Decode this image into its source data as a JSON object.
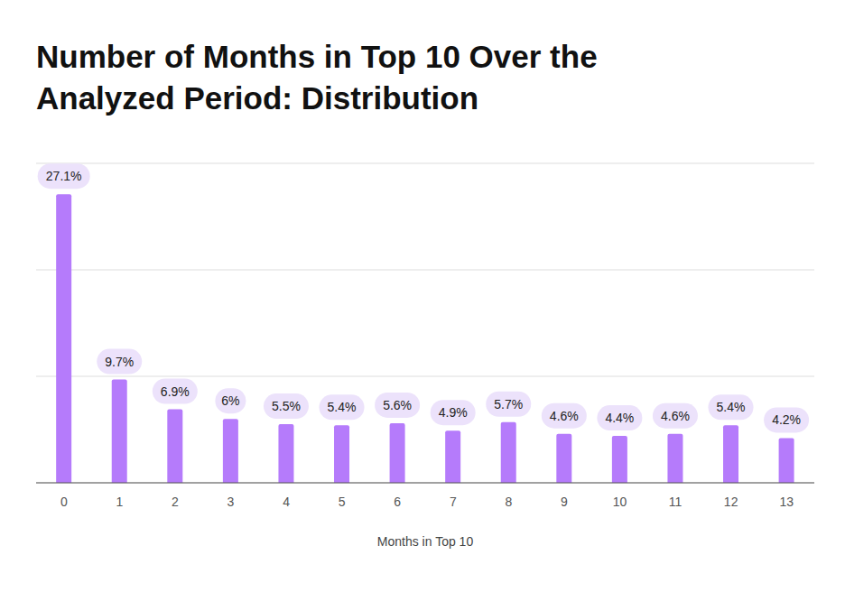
{
  "chart_data": {
    "type": "bar",
    "title": "Number of Months in Top 10 Over the Analyzed Period: Distribution",
    "xlabel": "Months in Top 10",
    "categories": [
      "0",
      "1",
      "2",
      "3",
      "4",
      "5",
      "6",
      "7",
      "8",
      "9",
      "10",
      "11",
      "12",
      "13"
    ],
    "values": [
      27.1,
      9.7,
      6.9,
      6,
      5.5,
      5.4,
      5.6,
      4.9,
      5.7,
      4.6,
      4.4,
      4.6,
      5.4,
      4.2
    ],
    "value_labels": [
      "27.1%",
      "9.7%",
      "6.9%",
      "6%",
      "5.5%",
      "5.4%",
      "5.6%",
      "4.9%",
      "5.7%",
      "4.6%",
      "4.4%",
      "4.6%",
      "5.4%",
      "4.2%"
    ],
    "color": "#b57bfb",
    "ylim": [
      0,
      30
    ],
    "yticks": [
      0,
      10,
      20,
      30
    ],
    "grid": true,
    "data_labels": true,
    "tick_labels": "x"
  }
}
